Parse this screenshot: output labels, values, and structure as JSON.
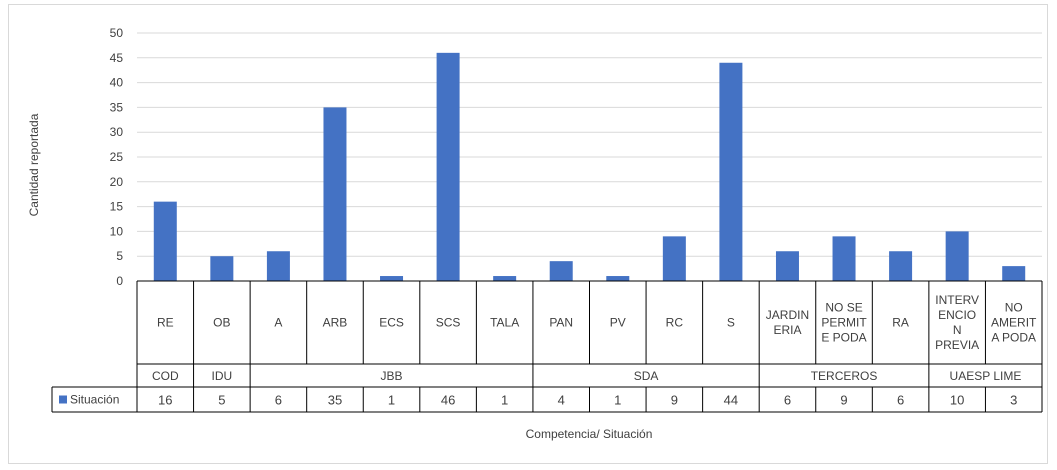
{
  "chart_data": {
    "type": "bar",
    "xlabel": "Competencia/ Situación",
    "ylabel": "Cantidad reportada",
    "ylim": [
      0,
      50
    ],
    "yticks": [
      0,
      5,
      10,
      15,
      20,
      25,
      30,
      35,
      40,
      45,
      50
    ],
    "grid": true,
    "categories": [
      {
        "label": [
          "RE"
        ],
        "group": "COD"
      },
      {
        "label": [
          "OB"
        ],
        "group": "IDU"
      },
      {
        "label": [
          "A"
        ],
        "group": "JBB"
      },
      {
        "label": [
          "ARB"
        ],
        "group": "JBB"
      },
      {
        "label": [
          "ECS"
        ],
        "group": "JBB"
      },
      {
        "label": [
          "SCS"
        ],
        "group": "JBB"
      },
      {
        "label": [
          "TALA"
        ],
        "group": "JBB"
      },
      {
        "label": [
          "PAN"
        ],
        "group": "SDA"
      },
      {
        "label": [
          "PV"
        ],
        "group": "SDA"
      },
      {
        "label": [
          "RC"
        ],
        "group": "SDA"
      },
      {
        "label": [
          "S"
        ],
        "group": "SDA"
      },
      {
        "label": [
          "JARDIN",
          "ERIA"
        ],
        "group": "TERCEROS"
      },
      {
        "label": [
          "NO SE",
          "PERMIT",
          "E PODA"
        ],
        "group": "TERCEROS"
      },
      {
        "label": [
          "RA"
        ],
        "group": "TERCEROS"
      },
      {
        "label": [
          "INTERV",
          "ENCIO",
          "N",
          "PREVIA"
        ],
        "group": "UAESP LIME"
      },
      {
        "label": [
          "NO",
          "AMERIT",
          "A PODA"
        ],
        "group": "UAESP LIME"
      }
    ],
    "groups": [
      "COD",
      "IDU",
      "JBB",
      "SDA",
      "TERCEROS",
      "UAESP LIME"
    ],
    "series": [
      {
        "name": "Situación",
        "color": "#4472c4",
        "values": [
          16,
          5,
          6,
          35,
          1,
          46,
          1,
          4,
          1,
          9,
          44,
          6,
          9,
          6,
          10,
          3
        ]
      }
    ]
  }
}
